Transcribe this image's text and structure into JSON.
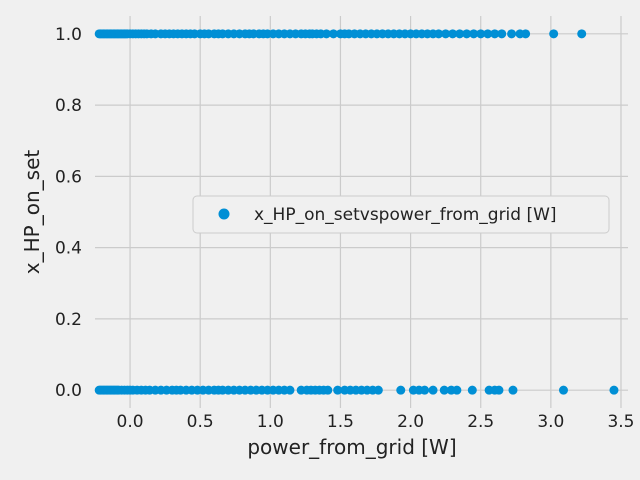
{
  "chart_data": {
    "type": "scatter",
    "title": "",
    "xlabel": "power_from_grid [W]",
    "ylabel": "x_HP_on_set",
    "xlim": [
      -0.25,
      3.55
    ],
    "ylim": [
      -0.05,
      1.05
    ],
    "xticks": [
      "0.0",
      "0.5",
      "1.0",
      "1.5",
      "2.0",
      "2.5",
      "3.0",
      "3.5"
    ],
    "yticks": [
      "0.0",
      "0.2",
      "0.4",
      "0.6",
      "0.8",
      "1.0"
    ],
    "grid": true,
    "legend_position": "center-right",
    "series": [
      {
        "name": "x_HP_on_setvspower_from_grid [W]",
        "color": "#008fd5",
        "marker": "circle",
        "points": [
          [
            -0.22,
            1.0
          ],
          [
            -0.21,
            1.0
          ],
          [
            -0.2,
            1.0
          ],
          [
            -0.19,
            1.0
          ],
          [
            -0.18,
            1.0
          ],
          [
            -0.17,
            1.0
          ],
          [
            -0.16,
            1.0
          ],
          [
            -0.15,
            1.0
          ],
          [
            -0.14,
            1.0
          ],
          [
            -0.13,
            1.0
          ],
          [
            -0.12,
            1.0
          ],
          [
            -0.11,
            1.0
          ],
          [
            -0.1,
            1.0
          ],
          [
            -0.09,
            1.0
          ],
          [
            -0.08,
            1.0
          ],
          [
            -0.07,
            1.0
          ],
          [
            -0.06,
            1.0
          ],
          [
            -0.05,
            1.0
          ],
          [
            -0.04,
            1.0
          ],
          [
            -0.03,
            1.0
          ],
          [
            -0.02,
            1.0
          ],
          [
            0.0,
            1.0
          ],
          [
            0.02,
            1.0
          ],
          [
            0.04,
            1.0
          ],
          [
            0.06,
            1.0
          ],
          [
            0.08,
            1.0
          ],
          [
            0.1,
            1.0
          ],
          [
            0.12,
            1.0
          ],
          [
            0.15,
            1.0
          ],
          [
            0.18,
            1.0
          ],
          [
            0.22,
            1.0
          ],
          [
            0.25,
            1.0
          ],
          [
            0.28,
            1.0
          ],
          [
            0.31,
            1.0
          ],
          [
            0.34,
            1.0
          ],
          [
            0.37,
            1.0
          ],
          [
            0.4,
            1.0
          ],
          [
            0.43,
            1.0
          ],
          [
            0.46,
            1.0
          ],
          [
            0.5,
            1.0
          ],
          [
            0.53,
            1.0
          ],
          [
            0.56,
            1.0
          ],
          [
            0.6,
            1.0
          ],
          [
            0.63,
            1.0
          ],
          [
            0.66,
            1.0
          ],
          [
            0.7,
            1.0
          ],
          [
            0.74,
            1.0
          ],
          [
            0.78,
            1.0
          ],
          [
            0.82,
            1.0
          ],
          [
            0.85,
            1.0
          ],
          [
            0.88,
            1.0
          ],
          [
            0.92,
            1.0
          ],
          [
            0.95,
            1.0
          ],
          [
            0.98,
            1.0
          ],
          [
            1.02,
            1.0
          ],
          [
            1.06,
            1.0
          ],
          [
            1.1,
            1.0
          ],
          [
            1.14,
            1.0
          ],
          [
            1.18,
            1.0
          ],
          [
            1.22,
            1.0
          ],
          [
            1.25,
            1.0
          ],
          [
            1.28,
            1.0
          ],
          [
            1.3,
            1.0
          ],
          [
            1.33,
            1.0
          ],
          [
            1.36,
            1.0
          ],
          [
            1.4,
            1.0
          ],
          [
            1.45,
            1.0
          ],
          [
            1.5,
            1.0
          ],
          [
            1.53,
            1.0
          ],
          [
            1.56,
            1.0
          ],
          [
            1.6,
            1.0
          ],
          [
            1.64,
            1.0
          ],
          [
            1.68,
            1.0
          ],
          [
            1.72,
            1.0
          ],
          [
            1.76,
            1.0
          ],
          [
            1.8,
            1.0
          ],
          [
            1.84,
            1.0
          ],
          [
            1.88,
            1.0
          ],
          [
            1.92,
            1.0
          ],
          [
            1.96,
            1.0
          ],
          [
            2.0,
            1.0
          ],
          [
            2.04,
            1.0
          ],
          [
            2.08,
            1.0
          ],
          [
            2.12,
            1.0
          ],
          [
            2.16,
            1.0
          ],
          [
            2.2,
            1.0
          ],
          [
            2.25,
            1.0
          ],
          [
            2.3,
            1.0
          ],
          [
            2.35,
            1.0
          ],
          [
            2.4,
            1.0
          ],
          [
            2.45,
            1.0
          ],
          [
            2.5,
            1.0
          ],
          [
            2.55,
            1.0
          ],
          [
            2.6,
            1.0
          ],
          [
            2.65,
            1.0
          ],
          [
            2.72,
            1.0
          ],
          [
            2.78,
            1.0
          ],
          [
            2.82,
            1.0
          ],
          [
            3.02,
            1.0
          ],
          [
            3.22,
            1.0
          ],
          [
            -0.22,
            0.0
          ],
          [
            -0.21,
            0.0
          ],
          [
            -0.2,
            0.0
          ],
          [
            -0.19,
            0.0
          ],
          [
            -0.18,
            0.0
          ],
          [
            -0.17,
            0.0
          ],
          [
            -0.16,
            0.0
          ],
          [
            -0.15,
            0.0
          ],
          [
            -0.14,
            0.0
          ],
          [
            -0.13,
            0.0
          ],
          [
            -0.12,
            0.0
          ],
          [
            -0.11,
            0.0
          ],
          [
            -0.1,
            0.0
          ],
          [
            -0.09,
            0.0
          ],
          [
            -0.08,
            0.0
          ],
          [
            -0.06,
            0.0
          ],
          [
            -0.04,
            0.0
          ],
          [
            -0.02,
            0.0
          ],
          [
            0.0,
            0.0
          ],
          [
            0.02,
            0.0
          ],
          [
            0.05,
            0.0
          ],
          [
            0.08,
            0.0
          ],
          [
            0.11,
            0.0
          ],
          [
            0.14,
            0.0
          ],
          [
            0.18,
            0.0
          ],
          [
            0.22,
            0.0
          ],
          [
            0.26,
            0.0
          ],
          [
            0.3,
            0.0
          ],
          [
            0.33,
            0.0
          ],
          [
            0.36,
            0.0
          ],
          [
            0.4,
            0.0
          ],
          [
            0.44,
            0.0
          ],
          [
            0.48,
            0.0
          ],
          [
            0.52,
            0.0
          ],
          [
            0.56,
            0.0
          ],
          [
            0.6,
            0.0
          ],
          [
            0.63,
            0.0
          ],
          [
            0.66,
            0.0
          ],
          [
            0.7,
            0.0
          ],
          [
            0.74,
            0.0
          ],
          [
            0.78,
            0.0
          ],
          [
            0.82,
            0.0
          ],
          [
            0.86,
            0.0
          ],
          [
            0.9,
            0.0
          ],
          [
            0.94,
            0.0
          ],
          [
            0.98,
            0.0
          ],
          [
            1.02,
            0.0
          ],
          [
            1.06,
            0.0
          ],
          [
            1.1,
            0.0
          ],
          [
            1.14,
            0.0
          ],
          [
            1.22,
            0.0
          ],
          [
            1.26,
            0.0
          ],
          [
            1.29,
            0.0
          ],
          [
            1.32,
            0.0
          ],
          [
            1.35,
            0.0
          ],
          [
            1.38,
            0.0
          ],
          [
            1.41,
            0.0
          ],
          [
            1.48,
            0.0
          ],
          [
            1.53,
            0.0
          ],
          [
            1.57,
            0.0
          ],
          [
            1.61,
            0.0
          ],
          [
            1.65,
            0.0
          ],
          [
            1.69,
            0.0
          ],
          [
            1.73,
            0.0
          ],
          [
            1.77,
            0.0
          ],
          [
            1.93,
            0.0
          ],
          [
            2.02,
            0.0
          ],
          [
            2.06,
            0.0
          ],
          [
            2.1,
            0.0
          ],
          [
            2.16,
            0.0
          ],
          [
            2.24,
            0.0
          ],
          [
            2.29,
            0.0
          ],
          [
            2.33,
            0.0
          ],
          [
            2.44,
            0.0
          ],
          [
            2.56,
            0.0
          ],
          [
            2.6,
            0.0
          ],
          [
            2.63,
            0.0
          ],
          [
            2.73,
            0.0
          ],
          [
            3.09,
            0.0
          ],
          [
            3.45,
            0.0
          ]
        ]
      }
    ]
  }
}
